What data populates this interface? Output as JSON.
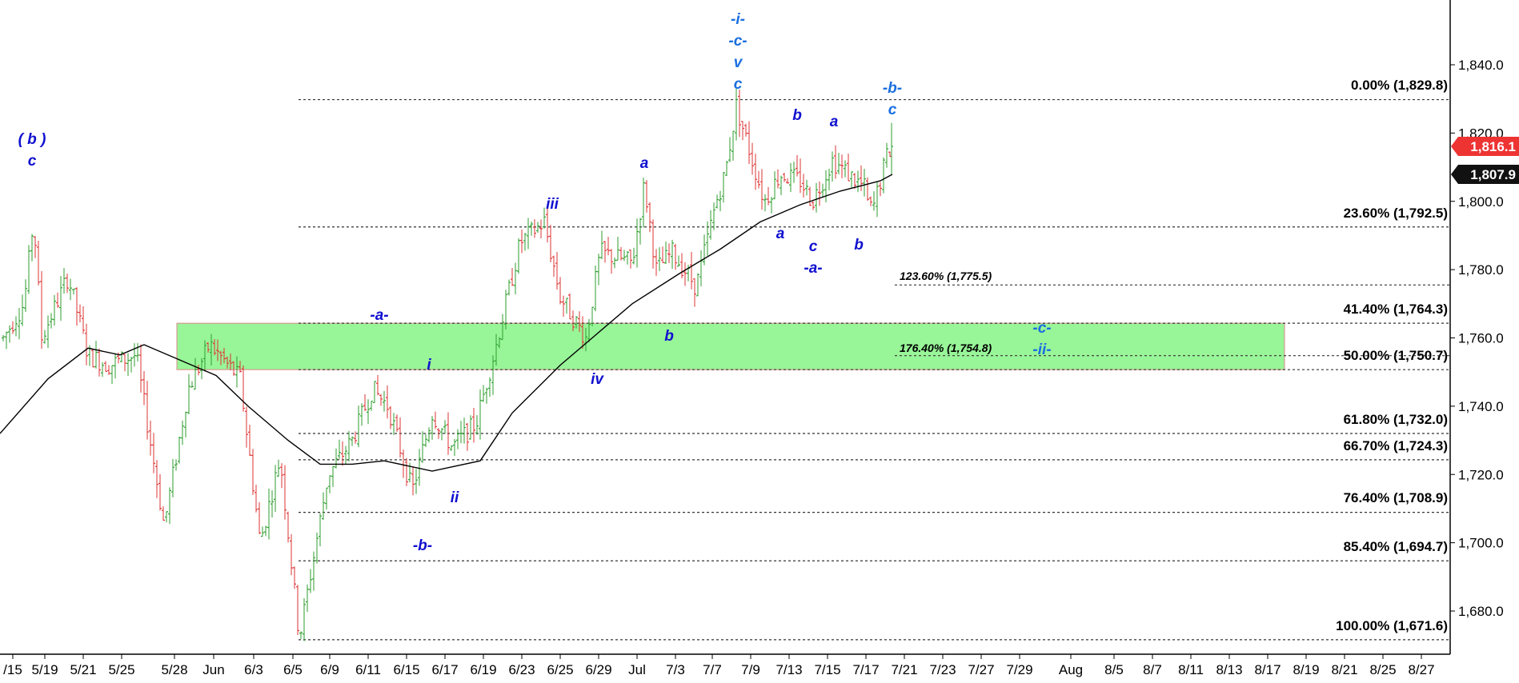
{
  "chart_data": {
    "type": "candlestick",
    "title": "",
    "y_axis": {
      "ticks": [
        1680,
        1700,
        1720,
        1740,
        1760,
        1780,
        1800,
        1820,
        1840
      ],
      "tick_labels": [
        "1,680.0",
        "1,700.0",
        "1,720.0",
        "1,740.0",
        "1,760.0",
        "1,780.0",
        "1,800.0",
        "1,820.0",
        "1,840.0"
      ],
      "range": [
        1664,
        1858
      ],
      "position": "right"
    },
    "x_axis": {
      "labels": [
        "/15",
        "5/19",
        "5/21",
        "5/25",
        "5/28",
        "Jun",
        "6/3",
        "6/5",
        "6/9",
        "6/11",
        "6/15",
        "6/17",
        "6/19",
        "6/23",
        "6/25",
        "6/29",
        "Jul",
        "7/3",
        "7/7",
        "7/9",
        "7/13",
        "7/15",
        "7/17",
        "7/21",
        "7/23",
        "7/27",
        "7/29",
        "Aug",
        "8/5",
        "8/7",
        "8/11",
        "8/13",
        "8/17",
        "8/19",
        "8/21",
        "8/25",
        "8/27"
      ]
    },
    "fibonacci_retracement": [
      {
        "label": "0.00% (1,829.8)",
        "price": 1829.8
      },
      {
        "label": "23.60% (1,792.5)",
        "price": 1792.5
      },
      {
        "label": "41.40% (1,764.3)",
        "price": 1764.3
      },
      {
        "label": "50.00% (1,750.7)",
        "price": 1750.7
      },
      {
        "label": "61.80% (1,732.0)",
        "price": 1732.0
      },
      {
        "label": "66.70% (1,724.3)",
        "price": 1724.3
      },
      {
        "label": "76.40% (1,708.9)",
        "price": 1708.9
      },
      {
        "label": "85.40% (1,694.7)",
        "price": 1694.7
      },
      {
        "label": "100.00% (1,671.6)",
        "price": 1671.6
      }
    ],
    "fibonacci_projection": [
      {
        "label": "123.60% (1,775.5)",
        "price": 1775.5
      },
      {
        "label": "176.40% (1,754.8)",
        "price": 1754.8
      }
    ],
    "target_zone": {
      "low": 1750.7,
      "high": 1764.3,
      "color": "#98f598"
    },
    "price_badges": [
      {
        "text": "1,816.1",
        "price": 1816.1,
        "color": "#ee3333"
      },
      {
        "text": "1,807.9",
        "price": 1807.9,
        "color": "#111111"
      }
    ],
    "wave_labels": [
      {
        "lines": [
          "( b )",
          "c"
        ],
        "price": 1819
      },
      {
        "lines": [
          "-a-"
        ],
        "price": 1765
      },
      {
        "lines": [
          "i"
        ],
        "price": 1752
      },
      {
        "lines": [
          "-b-"
        ],
        "price": 1698
      },
      {
        "lines": [
          "ii"
        ],
        "price": 1713
      },
      {
        "lines": [
          "iii"
        ],
        "price": 1797
      },
      {
        "lines": [
          "iv"
        ],
        "price": 1749
      },
      {
        "lines": [
          "a"
        ],
        "price": 1811
      },
      {
        "lines": [
          "b"
        ],
        "price": 1760
      },
      {
        "lines": [
          "-i-",
          "-c-",
          "v",
          "c"
        ],
        "price": 1846
      },
      {
        "lines": [
          "b"
        ],
        "price": 1824
      },
      {
        "lines": [
          "a"
        ],
        "price": 1822
      },
      {
        "lines": [
          "a"
        ],
        "price": 1790
      },
      {
        "lines": [
          "c",
          "-a-"
        ],
        "price": 1784
      },
      {
        "lines": [
          "b"
        ],
        "price": 1788
      },
      {
        "lines": [
          "-b-",
          "c"
        ],
        "price": 1829
      },
      {
        "lines": [
          "-c-",
          "-ii-"
        ],
        "price": 1760
      }
    ],
    "series": [
      {
        "type": "candlestick",
        "values": "OHLC bars from mid May to 7/20 (low 1,671.6 near 6/5, high 1,829.8 near 7/8, last 1,816.1)"
      },
      {
        "type": "line",
        "values": "moving average, last 1,807.9"
      }
    ],
    "colors": {
      "up": "#2e9e2e",
      "down": "#dd3333",
      "wave_labels": "#1010d0",
      "wave_labels_alt": "#1a6fe0"
    }
  }
}
